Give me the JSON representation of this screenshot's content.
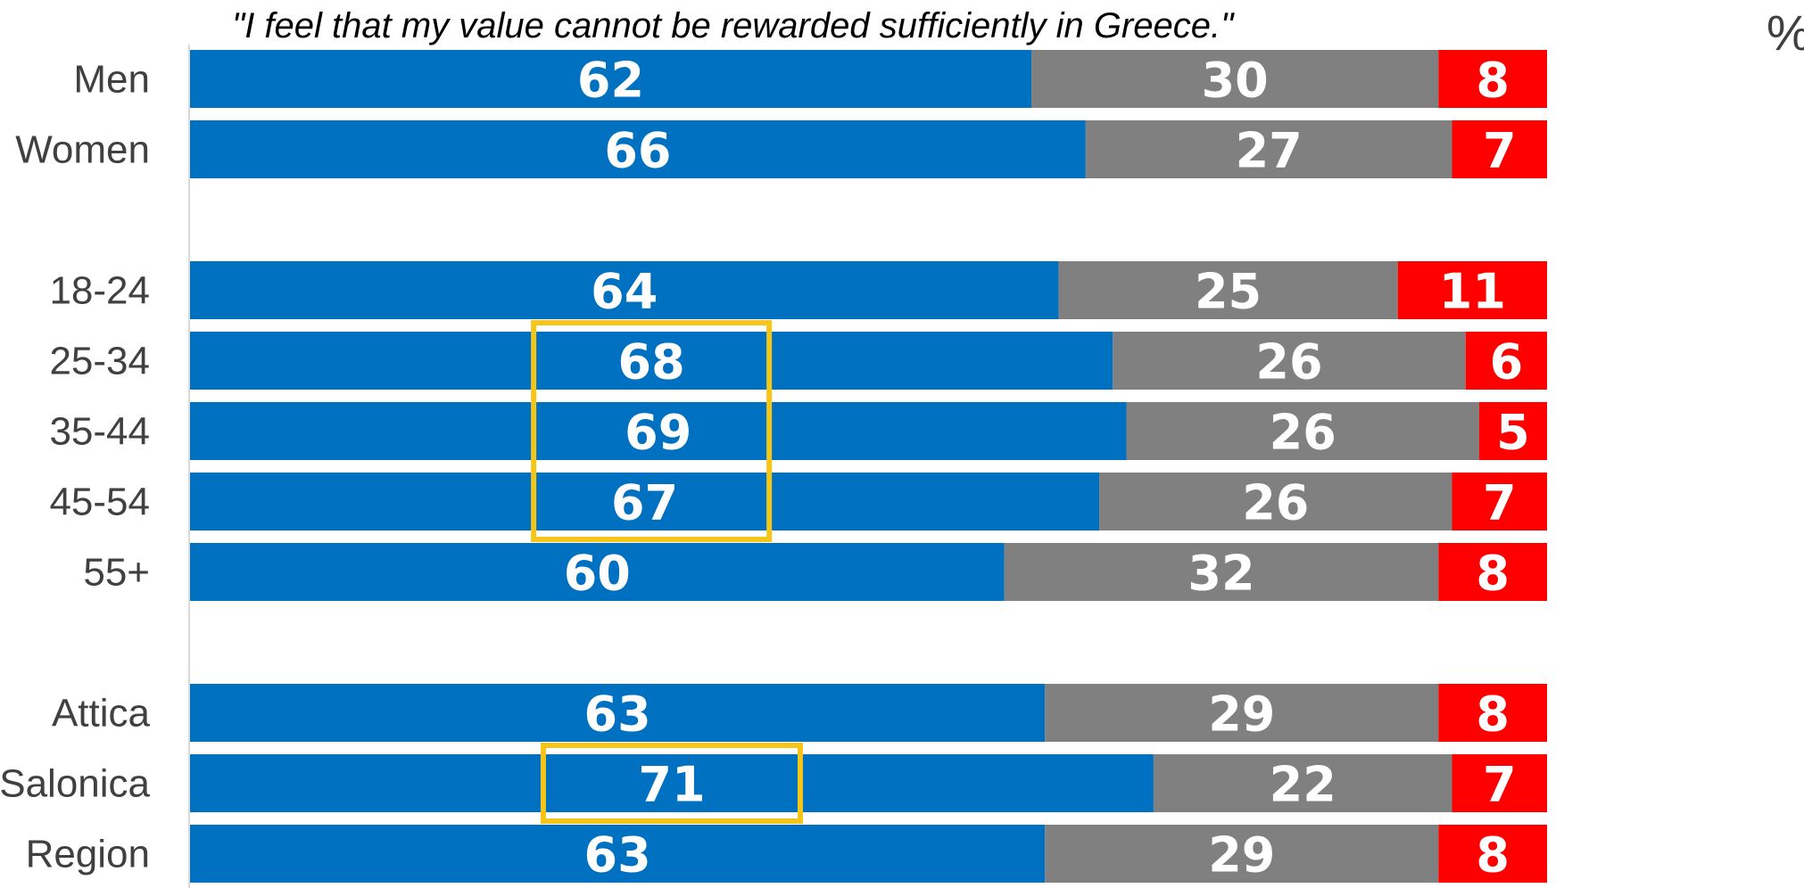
{
  "chart_data": {
    "type": "bar",
    "orientation": "horizontal",
    "stacked": true,
    "title": "\"I feel that my value cannot be rewarded sufficiently in Greece.\"",
    "unit": "%",
    "groups": [
      [
        "Men",
        "Women"
      ],
      [
        "18-24",
        "25-34",
        "35-44",
        "45-54",
        "55+"
      ],
      [
        "Attica",
        "Salonica",
        "Region"
      ]
    ],
    "categories": [
      "Men",
      "Women",
      "18-24",
      "25-34",
      "35-44",
      "45-54",
      "55+",
      "Attica",
      "Salonica",
      "Region"
    ],
    "series": [
      {
        "color": "#0070C0",
        "values": [
          62,
          66,
          64,
          68,
          69,
          67,
          60,
          63,
          71,
          63
        ]
      },
      {
        "color": "#808080",
        "values": [
          30,
          27,
          25,
          26,
          26,
          26,
          32,
          29,
          22,
          29
        ]
      },
      {
        "color": "#FF0000",
        "values": [
          8,
          7,
          11,
          6,
          5,
          7,
          8,
          8,
          7,
          8
        ]
      }
    ],
    "highlights": [
      {
        "categories": [
          "25-34",
          "35-44",
          "45-54"
        ],
        "series": 0,
        "color": "#F5C518"
      },
      {
        "categories": [
          "Salonica"
        ],
        "series": 0,
        "color": "#F5C518"
      }
    ],
    "xlim": [
      0,
      100
    ],
    "grid": false,
    "legend": "none"
  }
}
